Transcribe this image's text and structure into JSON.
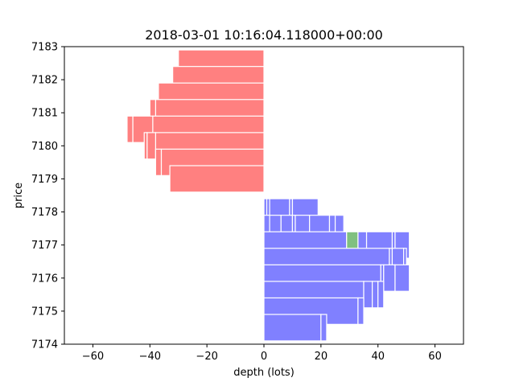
{
  "chart_data": {
    "type": "bar",
    "orientation": "horizontal",
    "stacked": true,
    "title": "2018-03-01 10:16:04.118000+00:00",
    "xlabel": "depth (lots)",
    "ylabel": "price",
    "xlim": [
      -70,
      70
    ],
    "ylim": [
      7174,
      7183
    ],
    "xticks": [
      -60,
      -40,
      -20,
      0,
      20,
      40,
      60
    ],
    "yticks": [
      7174,
      7175,
      7176,
      7177,
      7178,
      7179,
      7180,
      7181,
      7182,
      7183
    ],
    "bar_height": 0.8,
    "grid": false,
    "colors": {
      "ask": "#ff8080",
      "bid": "#8080ff",
      "highlight": "#80c080"
    },
    "asks": [
      {
        "price": 7182.5,
        "orders": [
          30
        ]
      },
      {
        "price": 7182.0,
        "orders": [
          32
        ]
      },
      {
        "price": 7181.5,
        "orders": [
          37
        ]
      },
      {
        "price": 7181.0,
        "orders": [
          38,
          2
        ]
      },
      {
        "price": 7180.5,
        "orders": [
          39,
          7,
          2
        ]
      },
      {
        "price": 7180.0,
        "orders": [
          38,
          3,
          1
        ]
      },
      {
        "price": 7179.5,
        "orders": [
          36,
          2
        ]
      },
      {
        "price": 7179.0,
        "orders": [
          33
        ]
      }
    ],
    "bids": [
      {
        "price": 7178.0,
        "orders": [
          1,
          1,
          7,
          1,
          9
        ]
      },
      {
        "price": 7177.5,
        "orders": [
          2,
          4,
          4,
          1,
          5,
          7,
          2,
          3
        ]
      },
      {
        "price": 7177.0,
        "orders": [
          29,
          4,
          3,
          9,
          1,
          5
        ],
        "highlight_index": 1
      },
      {
        "price": 7176.5,
        "orders": [
          44,
          1,
          4,
          1
        ]
      },
      {
        "price": 7176.0,
        "orders": [
          41,
          1,
          4,
          5
        ]
      },
      {
        "price": 7175.5,
        "orders": [
          35,
          3,
          2,
          2
        ]
      },
      {
        "price": 7175.0,
        "orders": [
          33,
          2
        ]
      },
      {
        "price": 7174.5,
        "orders": [
          20,
          2
        ]
      }
    ]
  }
}
